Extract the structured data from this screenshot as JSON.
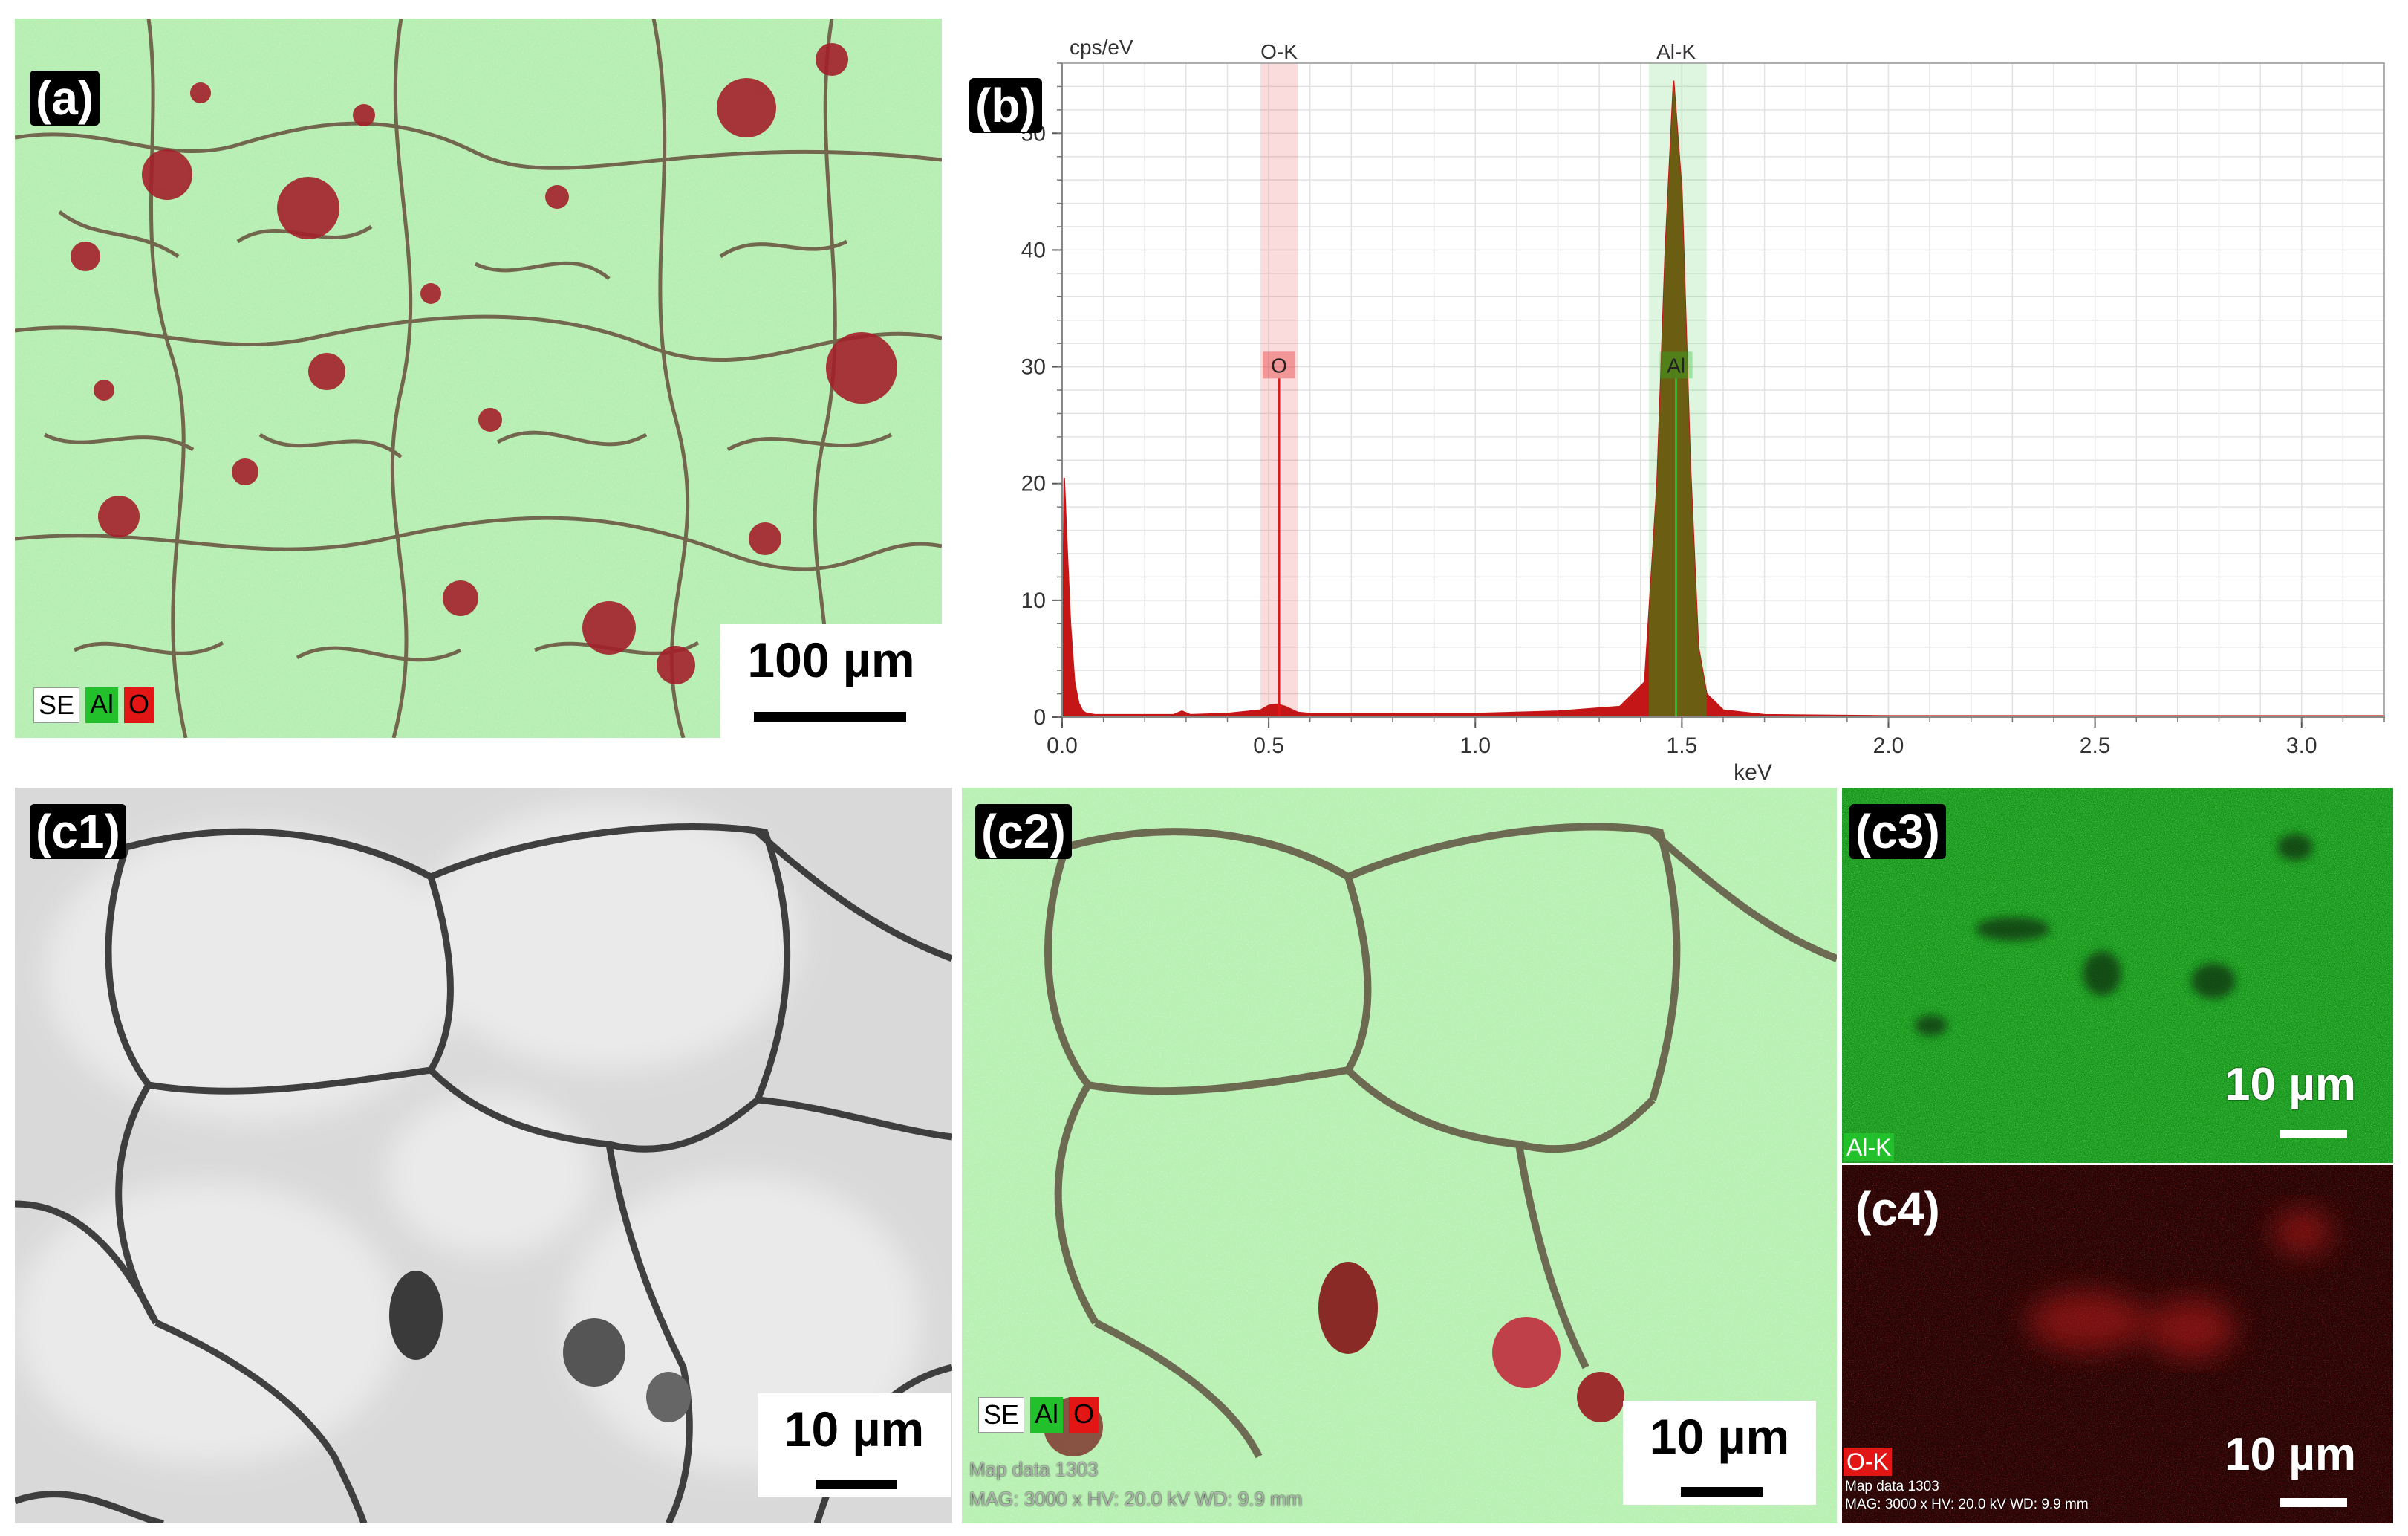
{
  "panels": {
    "a": {
      "label": "(a)",
      "scale": "100 µm",
      "legend": [
        "SE",
        "Al",
        "O"
      ]
    },
    "b": {
      "label": "(b)"
    },
    "c1": {
      "label": "(c1)",
      "scale": "10 µm"
    },
    "c2": {
      "label": "(c2)",
      "scale": "10 µm",
      "legend": [
        "SE",
        "Al",
        "O"
      ],
      "meta1": "Map data 1303",
      "meta2": "MAG: 3000 x HV: 20.0 kV WD: 9.9 mm"
    },
    "c3": {
      "label": "(c3)",
      "scale": "10 µm",
      "channel": "Al-K"
    },
    "c4": {
      "label": "(c4)",
      "scale": "10 µm",
      "channel": "O-K",
      "meta1": "Map data 1303",
      "meta2": "MAG: 3000 x HV: 20.0 kV WD: 9.9 mm"
    }
  },
  "colors": {
    "al_green": "#22c02b",
    "o_red": "#e31616",
    "matrix_green": "#b9f0b4",
    "spectrum_red": "#c41616",
    "al_peak_fill": "#6b5e12"
  },
  "chart_data": {
    "type": "area",
    "title": "",
    "xlabel": "keV",
    "ylabel": "cps/eV",
    "xlim": [
      0,
      3.2
    ],
    "ylim": [
      0,
      56
    ],
    "xticks": [
      "0.0",
      "0.5",
      "1.0",
      "1.5",
      "2.0",
      "2.5",
      "3.0"
    ],
    "yticks": [
      "0",
      "10",
      "20",
      "30",
      "40",
      "50"
    ],
    "grid": true,
    "series": [
      {
        "x": [
          0.0,
          0.005,
          0.01,
          0.02,
          0.03,
          0.04,
          0.05,
          0.06,
          0.08,
          0.1,
          0.2,
          0.27,
          0.29,
          0.31,
          0.4,
          0.48,
          0.5,
          0.52,
          0.54,
          0.57,
          0.6,
          0.8,
          1.0,
          1.2,
          1.35,
          1.41,
          1.44,
          1.46,
          1.48,
          1.5,
          1.52,
          1.54,
          1.56,
          1.6,
          1.7,
          2.0,
          2.5,
          3.0,
          3.2
        ],
        "y": [
          0,
          20.5,
          16,
          8,
          3,
          1.2,
          0.5,
          0.3,
          0.2,
          0.2,
          0.2,
          0.2,
          0.5,
          0.2,
          0.3,
          0.6,
          1.0,
          1.1,
          0.9,
          0.4,
          0.3,
          0.3,
          0.3,
          0.5,
          0.9,
          3,
          20,
          40,
          54.5,
          45,
          22,
          6,
          2,
          0.6,
          0.2,
          0.1,
          0.1,
          0.1,
          0.1
        ]
      }
    ],
    "annotations": [
      {
        "label": "O-K",
        "marker": "O",
        "x": 0.525,
        "band": [
          0.48,
          0.57
        ],
        "y_marker": 29,
        "color": "#e31616"
      },
      {
        "label": "Al-K",
        "marker": "Al",
        "x": 1.486,
        "band": [
          1.42,
          1.56
        ],
        "y_marker": 29,
        "color": "#22c02b"
      }
    ]
  }
}
